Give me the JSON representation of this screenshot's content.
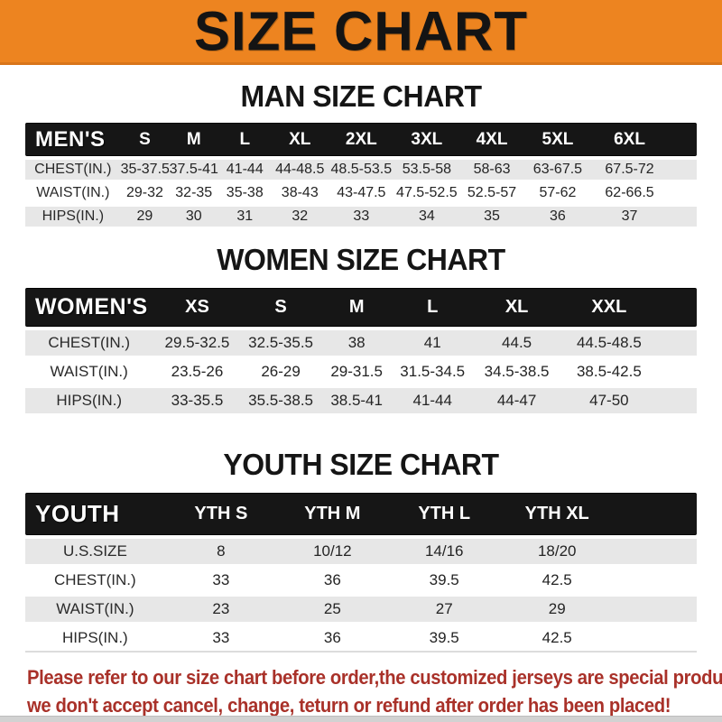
{
  "banner": {
    "title": "SIZE CHART",
    "bg_color": "#ED8420"
  },
  "sections": [
    {
      "title": "MAN SIZE CHART",
      "corner_label": "MEN'S",
      "columns": [
        "S",
        "M",
        "L",
        "XL",
        "2XL",
        "3XL",
        "4XL",
        "5XL",
        "6XL"
      ],
      "rows": [
        {
          "label": "CHEST(IN.)",
          "values": [
            "35-37.5",
            "37.5-41",
            "41-44",
            "44-48.5",
            "48.5-53.5",
            "53.5-58",
            "58-63",
            "63-67.5",
            "67.5-72"
          ]
        },
        {
          "label": "WAIST(IN.)",
          "values": [
            "29-32",
            "32-35",
            "35-38",
            "38-43",
            "43-47.5",
            "47.5-52.5",
            "52.5-57",
            "57-62",
            "62-66.5"
          ]
        },
        {
          "label": "HIPS(IN.)",
          "values": [
            "29",
            "30",
            "31",
            "32",
            "33",
            "34",
            "35",
            "36",
            "37"
          ]
        }
      ]
    },
    {
      "title": "WOMEN SIZE CHART",
      "corner_label": "WOMEN'S",
      "columns": [
        "XS",
        "S",
        "M",
        "L",
        "XL",
        "XXL"
      ],
      "rows": [
        {
          "label": "CHEST(IN.)",
          "values": [
            "29.5-32.5",
            "32.5-35.5",
            "38",
            "41",
            "44.5",
            "44.5-48.5"
          ]
        },
        {
          "label": "WAIST(IN.)",
          "values": [
            "23.5-26",
            "26-29",
            "29-31.5",
            "31.5-34.5",
            "34.5-38.5",
            "38.5-42.5"
          ]
        },
        {
          "label": "HIPS(IN.)",
          "values": [
            "33-35.5",
            "35.5-38.5",
            "38.5-41",
            "41-44",
            "44-47",
            "47-50"
          ]
        }
      ]
    },
    {
      "title": "YOUTH SIZE CHART",
      "corner_label": "YOUTH",
      "columns": [
        "YTH S",
        "YTH M",
        "YTH L",
        "YTH XL"
      ],
      "rows": [
        {
          "label": "U.S.SIZE",
          "values": [
            "8",
            "10/12",
            "14/16",
            "18/20"
          ]
        },
        {
          "label": "CHEST(IN.)",
          "values": [
            "33",
            "36",
            "39.5",
            "42.5"
          ]
        },
        {
          "label": "WAIST(IN.)",
          "values": [
            "23",
            "25",
            "27",
            "29"
          ]
        },
        {
          "label": "HIPS(IN.)",
          "values": [
            "33",
            "36",
            "39.5",
            "42.5"
          ]
        }
      ]
    }
  ],
  "notice": {
    "line1": "Please refer to our size chart before order,the customized jerseys are special products,",
    "line2": "we don't accept cancel, change, teturn or refund after order has been placed!",
    "text_color": "#A93129"
  }
}
